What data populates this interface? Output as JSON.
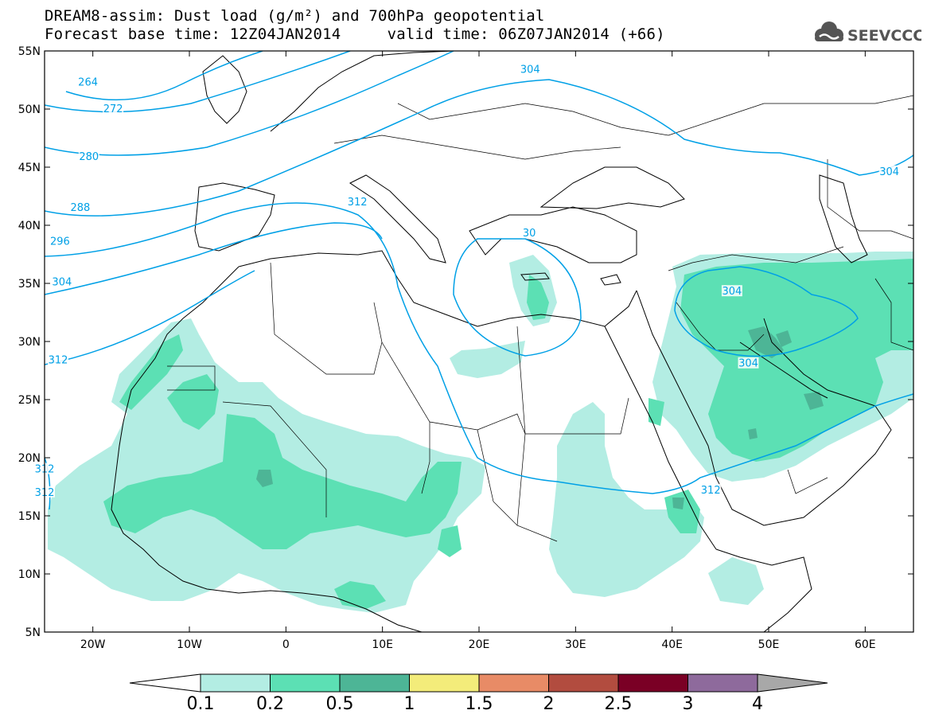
{
  "title": {
    "line1": "DREAM8-assim: Dust load (g/m²) and 700hPa geopotential",
    "line2": "Forecast base time: 12Z04JAN2014     valid time: 06Z07JAN2014 (+66)"
  },
  "logo": {
    "text": "SEEVCCC",
    "icon": "cloud-icon"
  },
  "map": {
    "lon_range": [
      -25,
      65
    ],
    "lat_range": [
      5,
      55
    ],
    "lon_ticks": [
      {
        "value": -20,
        "label": "20W"
      },
      {
        "value": -10,
        "label": "10W"
      },
      {
        "value": 0,
        "label": "0"
      },
      {
        "value": 10,
        "label": "10E"
      },
      {
        "value": 20,
        "label": "20E"
      },
      {
        "value": 30,
        "label": "30E"
      },
      {
        "value": 40,
        "label": "40E"
      },
      {
        "value": 50,
        "label": "50E"
      },
      {
        "value": 60,
        "label": "60E"
      }
    ],
    "lat_ticks": [
      {
        "value": 5,
        "label": "5N"
      },
      {
        "value": 10,
        "label": "10N"
      },
      {
        "value": 15,
        "label": "15N"
      },
      {
        "value": 20,
        "label": "20N"
      },
      {
        "value": 25,
        "label": "25N"
      },
      {
        "value": 30,
        "label": "30N"
      },
      {
        "value": 35,
        "label": "35N"
      },
      {
        "value": 40,
        "label": "40N"
      },
      {
        "value": 45,
        "label": "45N"
      },
      {
        "value": 50,
        "label": "50N"
      },
      {
        "value": 55,
        "label": "55N"
      }
    ],
    "contour_color": "#00a0e6",
    "contour_labels": [
      {
        "text": "264",
        "lon": -20.5,
        "lat": 52.3
      },
      {
        "text": "272",
        "lon": -17.9,
        "lat": 50.0
      },
      {
        "text": "280",
        "lon": -20.4,
        "lat": 45.9
      },
      {
        "text": "288",
        "lon": -21.3,
        "lat": 41.5
      },
      {
        "text": "296",
        "lon": -23.4,
        "lat": 38.6
      },
      {
        "text": "304",
        "lon": -23.2,
        "lat": 35.1
      },
      {
        "text": "312",
        "lon": -23.6,
        "lat": 28.4
      },
      {
        "text": "312",
        "lon": 7.4,
        "lat": 42.0
      },
      {
        "text": "304",
        "lon": 25.3,
        "lat": 53.4
      },
      {
        "text": "304",
        "lon": 62.5,
        "lat": 44.6
      },
      {
        "text": "304",
        "lon": 46.2,
        "lat": 34.3
      },
      {
        "text": "304",
        "lon": 47.9,
        "lat": 28.1
      },
      {
        "text": "312",
        "lon": 44.0,
        "lat": 17.2
      },
      {
        "text": "30",
        "lon": 25.2,
        "lat": 39.3
      },
      {
        "text": "312",
        "lon": -25.0,
        "lat": 19.0
      },
      {
        "text": "312",
        "lon": -25.0,
        "lat": 17.0
      }
    ]
  },
  "colorbar": {
    "colors": [
      "#b3ede3",
      "#5ce0b4",
      "#4db596",
      "#f3ec7a",
      "#e88b66",
      "#b24c3f",
      "#7a0025",
      "#8e6a9c"
    ],
    "levels": [
      "0.1",
      "0.2",
      "0.5",
      "1",
      "1.5",
      "2",
      "2.5",
      "3",
      "4"
    ],
    "under_color": "#ffffff",
    "over_color": "#a8a8a8"
  }
}
